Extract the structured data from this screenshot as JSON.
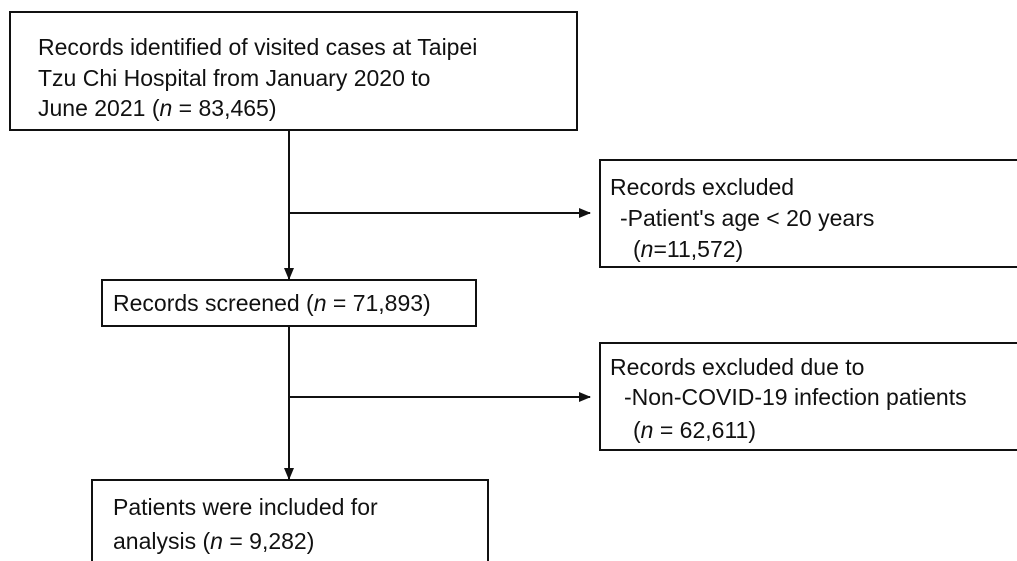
{
  "nodes": [
    {
      "lines": [
        "Records identified of visited cases at Taipei",
        "Tzu Chi Hospital from January 2020 to",
        "June 2021 ("
      ],
      "var": "n",
      "count": " = 83,465)"
    },
    {
      "lines": [
        "Records screened ("
      ],
      "var": "n",
      "count": " = 71,893)"
    },
    {
      "lines": [
        "Patients were included for",
        "analysis ("
      ],
      "var": "n",
      "count": " = 9,282)"
    }
  ],
  "exclusions": [
    {
      "lines": [
        "Records excluded",
        "-Patient's age < 20 years",
        "("
      ],
      "var": "n",
      "count": "=11,572)"
    },
    {
      "lines": [
        "Records excluded due to",
        "-Non-COVID-19 infection patients",
        "("
      ],
      "var": "n",
      "count": " = 62,611)"
    }
  ]
}
